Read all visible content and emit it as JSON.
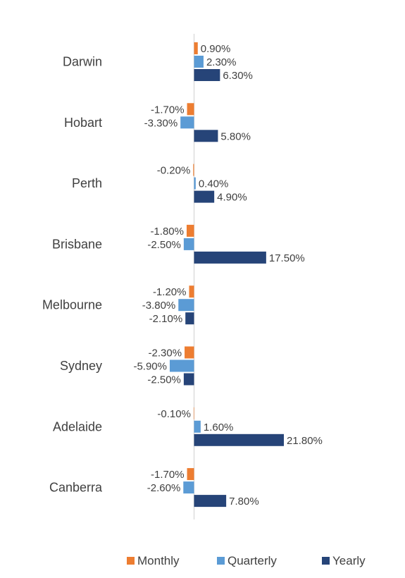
{
  "chart_data": {
    "type": "bar",
    "orientation": "horizontal",
    "categories": [
      "Darwin",
      "Hobart",
      "Perth",
      "Brisbane",
      "Melbourne",
      "Sydney",
      "Adelaide",
      "Canberra"
    ],
    "series": [
      {
        "name": "Monthly",
        "color": "#ED7D31",
        "values": [
          0.9,
          -1.7,
          -0.2,
          -1.8,
          -1.2,
          -2.3,
          -0.1,
          -1.7
        ],
        "labels": [
          "0.90%",
          "-1.70%",
          "-0.20%",
          "-1.80%",
          "-1.20%",
          "-2.30%",
          "-0.10%",
          "-1.70%"
        ]
      },
      {
        "name": "Quarterly",
        "color": "#5B9BD5",
        "values": [
          2.3,
          -3.3,
          0.4,
          -2.5,
          -3.8,
          -5.9,
          1.6,
          -2.6
        ],
        "labels": [
          "2.30%",
          "-3.30%",
          "0.40%",
          "-2.50%",
          "-3.80%",
          "-5.90%",
          "1.60%",
          "-2.60%"
        ]
      },
      {
        "name": "Yearly",
        "color": "#264478",
        "values": [
          6.3,
          5.8,
          4.9,
          17.5,
          -2.1,
          -2.5,
          21.8,
          7.8
        ],
        "labels": [
          "6.30%",
          "5.80%",
          "4.90%",
          "17.50%",
          "-2.10%",
          "-2.50%",
          "21.80%",
          "7.80%"
        ]
      }
    ],
    "grid": false,
    "legend_position": "bottom"
  }
}
